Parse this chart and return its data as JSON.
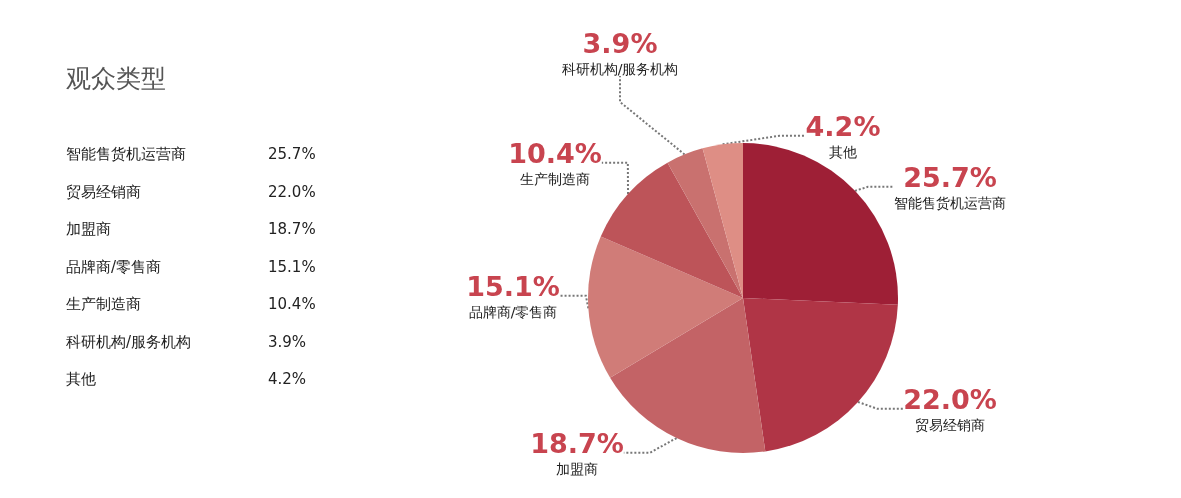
{
  "chart_data": {
    "type": "pie",
    "title": "观众类型",
    "categories": [
      "智能售货机运营商",
      "贸易经销商",
      "加盟商",
      "品牌商/零售商",
      "生产制造商",
      "科研机构/服务机构",
      "其他"
    ],
    "values": [
      25.7,
      22.0,
      18.7,
      15.1,
      10.4,
      3.9,
      4.2
    ],
    "value_labels": [
      "25.7%",
      "22.0%",
      "18.7%",
      "15.1%",
      "10.4%",
      "3.9%",
      "4.2%"
    ],
    "colors": [
      "#9e1f36",
      "#b03546",
      "#c36366",
      "#d07c78",
      "#bd5459",
      "#c9716f",
      "#de8e85"
    ]
  }
}
